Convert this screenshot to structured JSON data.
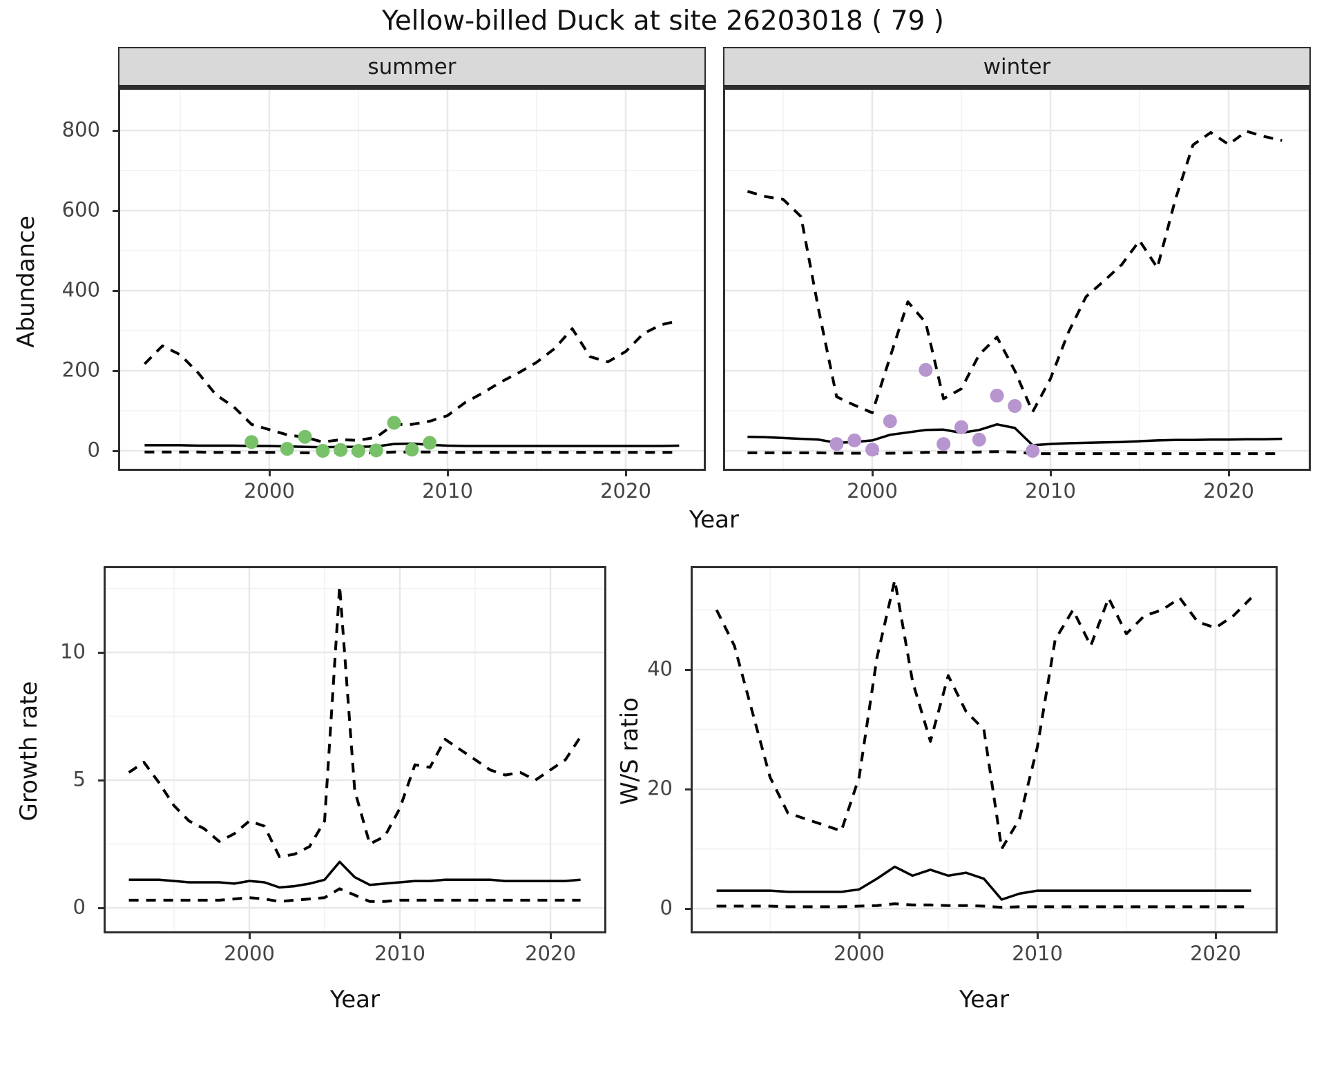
{
  "title": "Yellow-billed Duck at site 26203018 ( 79 )",
  "labels": {
    "ylabel_abundance": "Abundance",
    "ylabel_growth": "Growth rate",
    "ylabel_ws": "W/S ratio",
    "xlabel_top": "Year",
    "xlabel_growth": "Year",
    "xlabel_ws": "Year"
  },
  "colors": {
    "summer_points": "#78C169",
    "winter_points": "#B795CF",
    "line": "#000000",
    "strip_bg": "#D9D9D9",
    "panel_border": "#2e2e2e",
    "grid_major": "#E8E8E8",
    "grid_minor": "#F4F4F4",
    "tick_text": "#444444",
    "title_text": "#111111"
  },
  "chart_data": [
    {
      "id": "abundance-summer",
      "type": "line",
      "facet_label": "summer",
      "xlabel": "Year",
      "ylabel": "Abundance",
      "x": [
        1993,
        1994,
        1995,
        1996,
        1997,
        1998,
        1999,
        2000,
        2001,
        2002,
        2003,
        2004,
        2005,
        2006,
        2007,
        2008,
        2009,
        2010,
        2011,
        2012,
        2013,
        2014,
        2015,
        2016,
        2017,
        2018,
        2019,
        2020,
        2021,
        2022,
        2023
      ],
      "series": [
        {
          "name": "upper-95ci",
          "style": "dashed",
          "values": [
            217,
            262,
            240,
            195,
            140,
            110,
            66,
            53,
            40,
            34,
            22,
            28,
            26,
            34,
            66,
            66,
            74,
            88,
            121,
            145,
            172,
            195,
            221,
            255,
            305,
            235,
            222,
            248,
            293,
            315,
            325
          ]
        },
        {
          "name": "median",
          "style": "solid",
          "values": [
            14,
            14,
            14,
            13,
            13,
            13,
            12,
            12,
            11,
            10,
            9,
            10,
            10,
            11,
            17,
            18,
            15,
            13,
            12,
            12,
            12,
            12,
            12,
            12,
            12,
            12,
            12,
            12,
            12,
            12,
            13
          ]
        },
        {
          "name": "lower-95ci",
          "style": "dashed",
          "values": [
            -3,
            -3,
            -3,
            -3,
            -4,
            -4,
            -4,
            -4,
            -4,
            -5,
            -5,
            -5,
            -5,
            -5,
            -3,
            -3,
            -3,
            -4,
            -4,
            -4,
            -4,
            -4,
            -4,
            -4,
            -4,
            -4,
            -4,
            -4,
            -4,
            -4,
            -4
          ]
        }
      ],
      "points": {
        "name": "observed-counts",
        "color": "#78C169",
        "x": [
          1999,
          2001,
          2002,
          2003,
          2004,
          2005,
          2006,
          2007,
          2008,
          2009
        ],
        "y": [
          22,
          5,
          35,
          0,
          2,
          0,
          1,
          70,
          3,
          20
        ]
      },
      "xticks": [
        2000,
        2010,
        2020
      ],
      "xtick_minor": [
        1995,
        2005,
        2015
      ],
      "yticks": [
        0,
        200,
        400,
        600,
        800
      ],
      "ytick_minor": [
        100,
        300,
        500,
        700,
        900
      ],
      "xlim": [
        1991.5,
        2024.5
      ],
      "ylim": [
        -50,
        907
      ],
      "grid": true,
      "legend": "none"
    },
    {
      "id": "abundance-winter",
      "type": "line",
      "facet_label": "winter",
      "xlabel": "Year",
      "ylabel": "Abundance",
      "x": [
        1993,
        1994,
        1995,
        1996,
        1997,
        1998,
        1999,
        2000,
        2001,
        2002,
        2003,
        2004,
        2005,
        2006,
        2007,
        2008,
        2009,
        2010,
        2011,
        2012,
        2013,
        2014,
        2015,
        2016,
        2017,
        2018,
        2019,
        2020,
        2021,
        2022,
        2023
      ],
      "series": [
        {
          "name": "upper-95ci",
          "style": "dashed",
          "values": [
            648,
            635,
            628,
            585,
            350,
            135,
            114,
            95,
            234,
            372,
            320,
            130,
            155,
            240,
            284,
            200,
            97,
            180,
            295,
            385,
            424,
            465,
            525,
            457,
            626,
            764,
            795,
            765,
            798,
            785,
            775
          ]
        },
        {
          "name": "median",
          "style": "solid",
          "values": [
            35,
            34,
            32,
            30,
            28,
            20,
            22,
            26,
            40,
            46,
            52,
            53,
            45,
            52,
            66,
            57,
            14,
            17,
            19,
            20,
            21,
            22,
            24,
            26,
            27,
            27,
            28,
            28,
            29,
            29,
            30
          ]
        },
        {
          "name": "lower-95ci",
          "style": "dashed",
          "values": [
            -5,
            -5,
            -5,
            -5,
            -5,
            -6,
            -6,
            -6,
            -6,
            -5,
            -4,
            -4,
            -4,
            -3,
            -2,
            -3,
            -7,
            -7,
            -7,
            -7,
            -7,
            -7,
            -7,
            -7,
            -7,
            -7,
            -7,
            -7,
            -7,
            -7,
            -7
          ]
        }
      ],
      "points": {
        "name": "observed-counts",
        "color": "#B795CF",
        "x": [
          1998,
          1999,
          2000,
          2001,
          2003,
          2004,
          2005,
          2006,
          2007,
          2008,
          2009
        ],
        "y": [
          17,
          26,
          3,
          74,
          202,
          17,
          59,
          28,
          138,
          112,
          0
        ]
      },
      "xticks": [
        2000,
        2010,
        2020
      ],
      "xtick_minor": [
        1995,
        2005,
        2015
      ],
      "yticks": [
        0,
        200,
        400,
        600,
        800
      ],
      "ytick_minor": [
        100,
        300,
        500,
        700,
        900
      ],
      "xlim": [
        1991.6,
        2024.6
      ],
      "ylim": [
        -50,
        907
      ],
      "grid": true,
      "legend": "none"
    },
    {
      "id": "growth-rate",
      "type": "line",
      "facet_label": "",
      "xlabel": "Year",
      "ylabel": "Growth rate",
      "x": [
        1992,
        1993,
        1994,
        1995,
        1996,
        1997,
        1998,
        1999,
        2000,
        2001,
        2002,
        2003,
        2004,
        2005,
        2006,
        2007,
        2008,
        2009,
        2010,
        2011,
        2012,
        2013,
        2014,
        2015,
        2016,
        2017,
        2018,
        2019,
        2020,
        2021,
        2022
      ],
      "series": [
        {
          "name": "upper-95ci",
          "style": "dashed",
          "values": [
            5.3,
            5.7,
            4.9,
            4.0,
            3.4,
            3.1,
            2.6,
            2.9,
            3.4,
            3.2,
            2.0,
            2.1,
            2.4,
            3.4,
            12.6,
            4.6,
            2.5,
            2.8,
            3.9,
            5.6,
            5.5,
            6.6,
            6.2,
            5.8,
            5.4,
            5.2,
            5.3,
            5.0,
            5.4,
            5.8,
            6.7
          ]
        },
        {
          "name": "median",
          "style": "solid",
          "values": [
            1.1,
            1.1,
            1.1,
            1.05,
            1.0,
            1.0,
            1.0,
            0.95,
            1.05,
            1.0,
            0.8,
            0.85,
            0.95,
            1.1,
            1.8,
            1.2,
            0.9,
            0.95,
            1.0,
            1.05,
            1.05,
            1.1,
            1.1,
            1.1,
            1.1,
            1.05,
            1.05,
            1.05,
            1.05,
            1.05,
            1.1
          ]
        },
        {
          "name": "lower-95ci",
          "style": "dashed",
          "values": [
            0.3,
            0.3,
            0.3,
            0.3,
            0.3,
            0.3,
            0.3,
            0.35,
            0.4,
            0.35,
            0.25,
            0.3,
            0.35,
            0.4,
            0.75,
            0.5,
            0.25,
            0.25,
            0.3,
            0.3,
            0.3,
            0.3,
            0.3,
            0.3,
            0.3,
            0.3,
            0.3,
            0.3,
            0.3,
            0.3,
            0.3
          ]
        }
      ],
      "points": null,
      "xticks": [
        2000,
        2010,
        2020
      ],
      "xtick_minor": [
        1995,
        2005,
        2015
      ],
      "yticks": [
        0,
        5,
        10
      ],
      "ytick_minor": [
        2.5,
        7.5,
        12.5
      ],
      "xlim": [
        1990.3,
        2023.7
      ],
      "ylim": [
        -1.0,
        13.4
      ],
      "grid": true,
      "legend": "none"
    },
    {
      "id": "ws-ratio",
      "type": "line",
      "facet_label": "",
      "xlabel": "Year",
      "ylabel": "W/S ratio",
      "x": [
        1992,
        1993,
        1994,
        1995,
        1996,
        1997,
        1998,
        1999,
        2000,
        2001,
        2002,
        2003,
        2004,
        2005,
        2006,
        2007,
        2008,
        2009,
        2010,
        2011,
        2012,
        2013,
        2014,
        2015,
        2016,
        2017,
        2018,
        2019,
        2020,
        2021,
        2022
      ],
      "series": [
        {
          "name": "upper-95ci",
          "style": "dashed",
          "values": [
            50,
            44,
            33,
            22,
            16,
            15,
            14,
            13,
            22,
            42,
            55,
            38,
            28,
            39,
            33,
            30,
            10,
            15,
            27,
            45,
            50,
            44,
            52,
            46,
            49,
            50,
            52,
            48,
            47,
            49,
            52
          ]
        },
        {
          "name": "median",
          "style": "solid",
          "values": [
            3,
            3,
            3,
            3,
            2.8,
            2.8,
            2.8,
            2.8,
            3.2,
            5,
            7,
            5.5,
            6.5,
            5.5,
            6,
            5,
            1.5,
            2.5,
            3,
            3,
            3,
            3,
            3,
            3,
            3,
            3,
            3,
            3,
            3,
            3,
            3
          ]
        },
        {
          "name": "lower-95ci",
          "style": "dashed",
          "values": [
            0.4,
            0.4,
            0.4,
            0.4,
            0.3,
            0.3,
            0.3,
            0.3,
            0.4,
            0.5,
            0.8,
            0.6,
            0.6,
            0.5,
            0.5,
            0.4,
            0.2,
            0.3,
            0.3,
            0.3,
            0.3,
            0.3,
            0.3,
            0.3,
            0.3,
            0.3,
            0.3,
            0.3,
            0.3,
            0.3,
            0.3
          ]
        }
      ],
      "points": null,
      "xticks": [
        2000,
        2010,
        2020
      ],
      "xtick_minor": [
        1995,
        2005,
        2015
      ],
      "yticks": [
        0,
        20,
        40
      ],
      "ytick_minor": [
        10,
        30,
        50
      ],
      "xlim": [
        1990.5,
        2023.5
      ],
      "ylim": [
        -4.2,
        57.3
      ],
      "grid": true,
      "legend": "none"
    }
  ]
}
